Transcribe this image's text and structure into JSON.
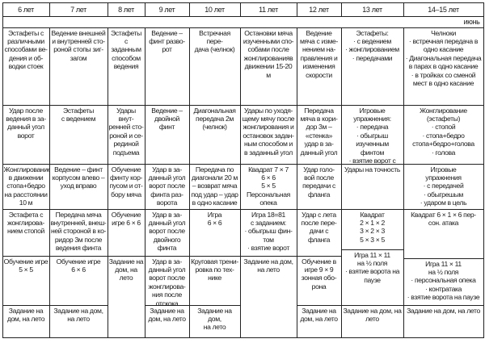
{
  "headers": [
    "6 лет",
    "7 лет",
    "8 лет",
    "9 лет",
    "10 лет",
    "11 лет",
    "12 лет",
    "13 лет",
    "14–15 лет"
  ],
  "month": "июнь",
  "rows": [
    [
      "Эстафеты с\nразличными\nспособами ве-\nдения и об-\nводки стоек",
      "Ведение внешней\nи внутренней сто-\nроной стопы зиг-\nзагом",
      "Эстафеты с\nзаданным\nспособом\nведения",
      "Ведение –\nфинт разво-\nрот",
      "Встречная пере-\nдача (челнок)",
      "Остановки мяча\nизученными спо-\nсобами после\nжонглированияв\nдвижении 15-20\nм",
      "Ведение\nмяча с изме-\nнением на-\nправления и\nизменения\nскорости",
      "Эстафеты:\n· с ведением\n· жонглированием\n· передачами",
      "Челноки\n· встречная передача в\nодно касание\n· Диагональная передача\nв парах в одно касание\n· в тройках со сменой\nмест в одно касание"
    ],
    [
      "Удар после\nведения в за-\nданный угол\nворот",
      "Эстафеты\nс ведением",
      "Удары внут-\nренней сто-\nроной и се-\nрединой\nподъема",
      "Ведение –\nдвойной\nфинт",
      "Диагональная\nпередача 2м\n(челнок)",
      "Удары по уходя-\nщему мячу после\nжонглирования и\nостановок задан-\nным способом и\nв заданный угол",
      "Передача\nмяча в кори-\nдор 3м –\n«стенка»\nудар в за-\nданный угол",
      "Игровые упражнения:\n· передача\n· обыгрыш изученным\nфинтом\n· взятие ворот с пау-\nзой перед ударом",
      "Жонглирование\n(эстафеты)\n· стопой\n· стопа+бедро\nстопа+бедро+голова\n· голова"
    ],
    [
      "Жонглирование\nв движении\nстопа+бедро\nна расстоянии\n10 м",
      "Ведение – финт\nкорпусом влево –\nуход вправо",
      "Обучение\nфинту кор-\nпусом и от-\nбору мяча",
      "Удар в за-\nданный угол\nворот после\nфинта раз-\nворота",
      "Передача по\nдиагонали 20 м\n– возврат мяча\nпод удар – удар\nв одно касание",
      "Квадрат 7 × 7\n6 × 6\n5 × 5\nПерсональная\nопека",
      "Удар голо-\nвой после\nпередачи с\nфланга",
      "Удары на точность",
      "Игровые\nупражнения\n· с передачей\n· обыгрешым\n· ударом в цель"
    ],
    [
      "Эстафета с\nжонглирова-\nнием стопой",
      "Передача мяча\nвнутренней, внеш-\nней стороной в ко-\nридор 3м после\nведения финта",
      "Обучение\nигре 6 × 6",
      "Удар в за-\nданный угол\nворот после\nдвойного\nфинта",
      "Игра\n6 × 6",
      "Игра 18=81\nс заданием:\n· обыгрыш фин-\nтом\n· взятие ворот",
      "Удар с лета\nпосле пере-\nдачи с\nфланга",
      "Квадрат\n2 × 1 × 2\n3 × 2 × 3\n5 × 3 × 5",
      "Квадрат 6 × 1 × 6 пер-\nсон. атака"
    ],
    [
      "Обучение игре\n5 × 5",
      "Обучение игре\n6 × 6",
      "Задание на\nдом, на\nлето",
      "Удар в за-\nданный угол\nворот после\nжонглирова-\nния после\nотскока",
      "Круговая трени-\nровка по тех-\nнике",
      "Задание на дом,\nна лето",
      "Обучение в\nигре 9 × 9\nзонная обо-\nрона",
      "Игра 11 × 11\nна ½ поля\n· взятие ворота на\nпаузе",
      "Игра 11 × 11\nна ½ поля\n· персональная опека\n· контратака\n· взятие ворота на паузе"
    ],
    [
      "Задание на\nдом, на лето",
      "Задание на дом,\nна лето",
      "",
      "Задание на\nдом, на лето",
      "Задание на дом,\nна лето",
      "",
      "Задание на\nдом, на лето",
      "Задание на дом, на\nлето",
      "Задание на дом, на лето"
    ]
  ]
}
